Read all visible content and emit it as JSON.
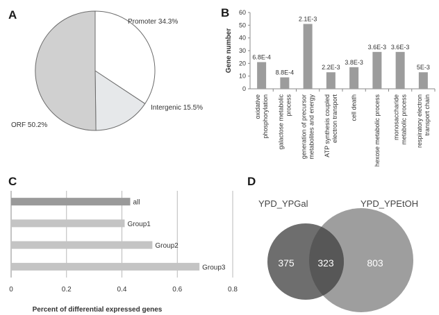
{
  "panels": {
    "a": {
      "letter": "A",
      "chart_data": {
        "type": "pie",
        "slices": [
          {
            "label": "Promoter 34.3%",
            "value": 34.3,
            "color": "#ffffff"
          },
          {
            "label": "Intergenic 15.5%",
            "value": 15.5,
            "color": "#e6e8ea"
          },
          {
            "label": "ORF 50.2%",
            "value": 50.2,
            "color": "#d0d0d0"
          }
        ]
      }
    },
    "b": {
      "letter": "B",
      "chart_data": {
        "type": "bar",
        "ylabel": "Gene number",
        "ylim": [
          0,
          60
        ],
        "yticks": [
          0,
          10,
          20,
          30,
          40,
          50,
          60
        ],
        "bar_color": "#9c9c9c",
        "categories": [
          [
            "oxidative",
            "phosphorylation"
          ],
          [
            "galactose metabolic",
            "process"
          ],
          [
            "generation of precursor",
            "metabolites and energy"
          ],
          [
            "ATP synthesis coupled",
            "electron transport"
          ],
          [
            "cell death"
          ],
          [
            "hexose metabolic process"
          ],
          [
            "monosaccharide",
            "metabolic process"
          ],
          [
            "respiratory electron",
            "transport chain"
          ]
        ],
        "values": [
          21,
          9,
          51,
          13,
          17,
          29,
          29,
          13
        ],
        "data_labels": [
          "6.8E-4",
          "8.8E-4",
          "2.1E-3",
          "2.2E-3",
          "3.8E-3",
          "3.6E-3",
          "3.6E-3",
          "5E-3"
        ]
      }
    },
    "c": {
      "letter": "C",
      "chart_data": {
        "type": "bar",
        "orientation": "horizontal",
        "xlabel": "Percent of differential expressed genes",
        "xlim": [
          0,
          0.8
        ],
        "xticks": [
          "0",
          "0.2",
          "0.4",
          "0.6",
          "0.8"
        ],
        "xtick_values": [
          0,
          0.2,
          0.4,
          0.6,
          0.8
        ],
        "grid": true,
        "categories": [
          "all",
          "Group1",
          "Group2",
          "Group3"
        ],
        "values": [
          0.43,
          0.41,
          0.51,
          0.68
        ],
        "colors": [
          "#9a9a9a",
          "#c4c4c4",
          "#c4c4c4",
          "#c4c4c4"
        ]
      }
    },
    "d": {
      "letter": "D",
      "venn": {
        "sets": [
          {
            "name": "YPD_YPGal",
            "only": "375",
            "color": "#6e6e6e"
          },
          {
            "name": "YPD_YPEtOH",
            "only": "803",
            "color": "#9e9e9e"
          }
        ],
        "overlap": "323",
        "overlap_color": "#575757"
      }
    }
  }
}
